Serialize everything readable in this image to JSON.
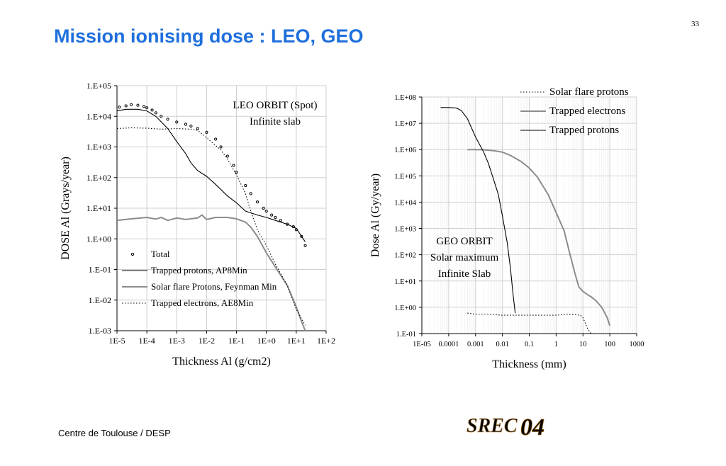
{
  "page": {
    "title": "Mission ionising dose : LEO, GEO",
    "page_number": "33",
    "footer": "Centre de Toulouse / DESP",
    "logo_text": "SREC04"
  },
  "colors": {
    "title": "#1f6fdc",
    "trapped_protons": "#000000",
    "solar_flare": "#8c8c8c",
    "trapped_electrons": "#000000",
    "total": "#000000",
    "gridline": "#cfcfcf"
  },
  "chart_data": [
    {
      "type": "line",
      "x_scale": "log",
      "y_scale": "log",
      "xlabel": "Thickness Al (g/cm2)",
      "ylabel": "DOSE Al (Grays/year)",
      "xlim": [
        1e-05,
        100
      ],
      "ylim": [
        0.001,
        100000
      ],
      "x_ticks": [
        "1E-5",
        "1E-4",
        "1E-3",
        "1E-2",
        "1E-1",
        "1E+0",
        "1E+1",
        "1E+2"
      ],
      "y_ticks": [
        "1.E-03",
        "1.E-02",
        "1.E-01",
        "1.E+00",
        "1.E+01",
        "1.E+02",
        "1.E+03",
        "1.E+04",
        "1.E+05"
      ],
      "grid": true,
      "legend_position": "bottom-left",
      "annotation": [
        "LEO ORBIT (Spot)",
        "Infinite slab"
      ],
      "series": [
        {
          "name": "Total",
          "style": "dots",
          "color": "#000000",
          "x": [
            1.2e-05,
            2e-05,
            3e-05,
            5e-05,
            8e-05,
            0.0001,
            0.00015,
            0.0002,
            0.0003,
            0.0005,
            0.001,
            0.002,
            0.003,
            0.005,
            0.01,
            0.02,
            0.03,
            0.05,
            0.08,
            0.1,
            0.2,
            0.3,
            0.5,
            0.8,
            1,
            1.5,
            2,
            3,
            5,
            8,
            10,
            15,
            20
          ],
          "y": [
            20000,
            22000,
            24000,
            23000,
            21000,
            19000,
            16000,
            13000,
            10000,
            8000,
            6500,
            5500,
            4800,
            4000,
            3000,
            1800,
            1000,
            500,
            250,
            150,
            55,
            30,
            16,
            10,
            8,
            6,
            5,
            4,
            3,
            2.5,
            2,
            1.2,
            0.6
          ]
        },
        {
          "name": "Trapped protons,  AP8Min",
          "style": "solid",
          "color": "#000000",
          "x": [
            1e-05,
            2e-05,
            5e-05,
            0.0001,
            0.0002,
            0.0005,
            0.001,
            0.002,
            0.003,
            0.005,
            0.01,
            0.02,
            0.05,
            0.1,
            0.2,
            0.5,
            1,
            2,
            5,
            10,
            20
          ],
          "y": [
            15000,
            17000,
            17000,
            15000,
            10000,
            4000,
            1500,
            600,
            300,
            170,
            110,
            60,
            25,
            15,
            8,
            6,
            5,
            4,
            3,
            2.2,
            0.8
          ]
        },
        {
          "name": "Solar flare Protons, Feynman Min",
          "style": "solid",
          "color": "#8c8c8c",
          "x": [
            1e-05,
            3e-05,
            0.0001,
            0.0002,
            0.0003,
            0.0005,
            0.001,
            0.002,
            0.005,
            0.007,
            0.01,
            0.02,
            0.05,
            0.1,
            0.2,
            0.3,
            0.5,
            1,
            2,
            5,
            10,
            15,
            20
          ],
          "y": [
            4,
            4.5,
            5,
            4.4,
            5,
            4,
            4.8,
            4.3,
            4.8,
            6,
            4.3,
            5,
            5,
            4.5,
            3.5,
            2.4,
            1.2,
            0.35,
            0.12,
            0.03,
            0.006,
            0.002,
            0.001
          ]
        },
        {
          "name": "Trapped electrons, AE8Min",
          "style": "dotted",
          "color": "#000000",
          "x": [
            1e-05,
            3e-05,
            0.0001,
            0.0003,
            0.001,
            0.003,
            0.005,
            0.01,
            0.03,
            0.05,
            0.1,
            0.2,
            0.3,
            0.5,
            1,
            2,
            5,
            10,
            20
          ],
          "y": [
            4000,
            4200,
            4100,
            3800,
            4000,
            3800,
            3500,
            2000,
            800,
            400,
            120,
            30,
            8,
            2,
            0.6,
            0.15,
            0.03,
            0.005,
            0.0015
          ]
        }
      ]
    },
    {
      "type": "line",
      "x_scale": "log",
      "y_scale": "log",
      "xlabel": "Thickness (mm)",
      "ylabel": "Dose Al (Gy/year)",
      "xlim": [
        1e-05,
        1000
      ],
      "ylim": [
        0.1,
        100000000
      ],
      "x_ticks": [
        "1E-05",
        "0.0001",
        "0.001",
        "0.01",
        "0.1",
        "1",
        "10",
        "100",
        "1000"
      ],
      "y_ticks": [
        "1.E-01",
        "1.E+00",
        "1.E+01",
        "1.E+02",
        "1.E+03",
        "1.E+04",
        "1.E+05",
        "1.E+06",
        "1.E+07",
        "1.E+08"
      ],
      "grid": true,
      "legend_position": "top-right",
      "annotation": [
        "GEO ORBIT",
        "Solar maximum",
        "Infinite Slab"
      ],
      "series": [
        {
          "name": "Solar flare protons",
          "style": "dotted",
          "color": "#000000",
          "x": [
            0.0005,
            0.001,
            0.003,
            0.01,
            0.1,
            1,
            3,
            8,
            10,
            15,
            20
          ],
          "y": [
            0.6,
            0.55,
            0.55,
            0.5,
            0.5,
            0.5,
            0.55,
            0.5,
            0.4,
            0.15,
            0.1
          ]
        },
        {
          "name": "Trapped electrons",
          "style": "solid",
          "color": "#8c8c8c",
          "x": [
            0.0005,
            0.001,
            0.002,
            0.005,
            0.01,
            0.02,
            0.05,
            0.1,
            0.2,
            0.5,
            1,
            2,
            3,
            5,
            7,
            10,
            15,
            20,
            30,
            50,
            80,
            100
          ],
          "y": [
            1000000,
            1000000,
            980000,
            900000,
            800000,
            600000,
            350000,
            200000,
            90000,
            20000,
            4000,
            800,
            150,
            20,
            6,
            4,
            3,
            2.5,
            1.8,
            1,
            0.4,
            0.2
          ]
        },
        {
          "name": "Trapped protons",
          "style": "solid",
          "color": "#000000",
          "x": [
            5e-05,
            0.0001,
            0.0002,
            0.0003,
            0.0005,
            0.001,
            0.002,
            0.003,
            0.005,
            0.007,
            0.01,
            0.015,
            0.02,
            0.025,
            0.03
          ],
          "y": [
            40000000,
            40000000,
            38000000,
            30000000,
            15000000,
            3000000,
            800000,
            300000,
            60000,
            20000,
            3000,
            300,
            30,
            3,
            0.6
          ]
        }
      ]
    }
  ]
}
